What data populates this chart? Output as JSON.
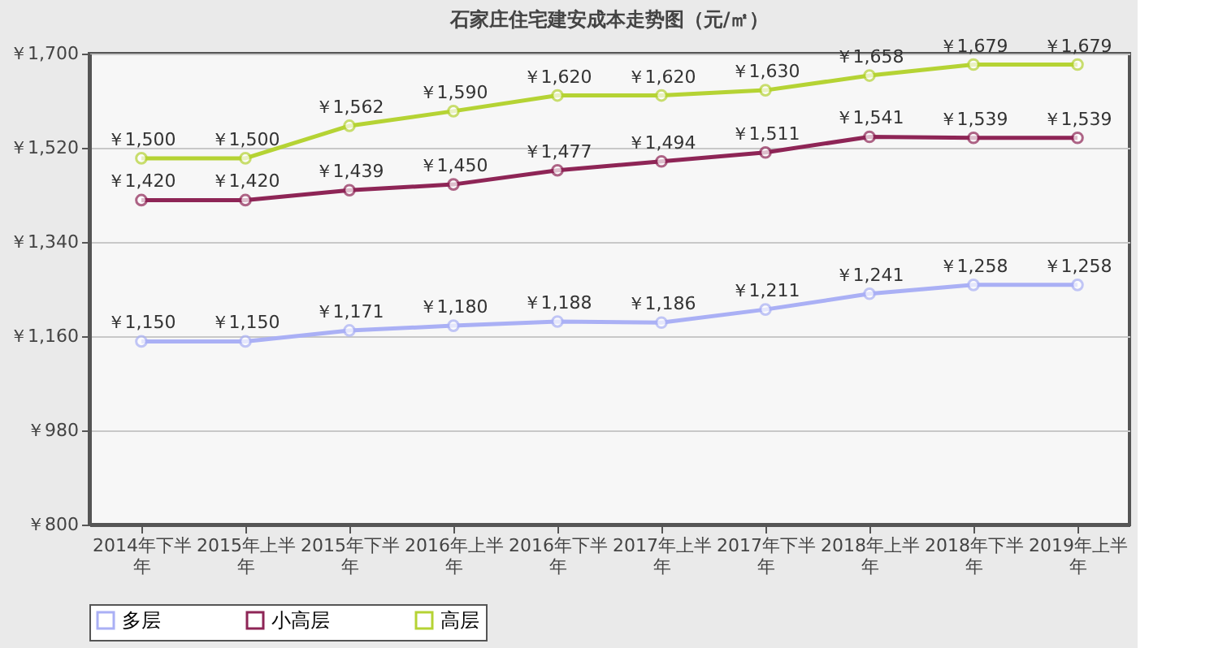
{
  "chart_data": {
    "type": "line",
    "title": "石家庄住宅建安成本走势图（元/㎡）",
    "categories": [
      "2014年下半年",
      "2015年上半年",
      "2015年下半年",
      "2016年上半年",
      "2016年下半年",
      "2017年上半年",
      "2017年下半年",
      "2018年上半年",
      "2018年下半年",
      "2019年上半年"
    ],
    "series": [
      {
        "name": "多层",
        "color": "#aab0f5",
        "values": [
          1150,
          1150,
          1171,
          1180,
          1188,
          1186,
          1211,
          1241,
          1258,
          1258
        ],
        "value_labels": [
          "￥1,150",
          "￥1,150",
          "￥1,171",
          "￥1,180",
          "￥1,188",
          "￥1,186",
          "￥1,211",
          "￥1,241",
          "￥1,258",
          "￥1,258"
        ]
      },
      {
        "name": "小高层",
        "color": "#8e2556",
        "values": [
          1420,
          1420,
          1439,
          1450,
          1477,
          1494,
          1511,
          1541,
          1539,
          1539
        ],
        "value_labels": [
          "￥1,420",
          "￥1,420",
          "￥1,439",
          "￥1,450",
          "￥1,477",
          "￥1,494",
          "￥1,511",
          "￥1,541",
          "￥1,539",
          "￥1,539"
        ]
      },
      {
        "name": "高层",
        "color": "#b5d334",
        "values": [
          1500,
          1500,
          1562,
          1590,
          1620,
          1620,
          1630,
          1658,
          1679,
          1679
        ],
        "value_labels": [
          "￥1,500",
          "￥1,500",
          "￥1,562",
          "￥1,590",
          "￥1,620",
          "￥1,620",
          "￥1,630",
          "￥1,658",
          "￥1,679",
          "￥1,679"
        ]
      }
    ],
    "ylim": [
      800,
      1700
    ],
    "yticks": [
      {
        "value": 800,
        "label": "￥800"
      },
      {
        "value": 980,
        "label": "￥980"
      },
      {
        "value": 1160,
        "label": "￥1,160"
      },
      {
        "value": 1340,
        "label": "￥1,340"
      },
      {
        "value": 1520,
        "label": "￥1,520"
      },
      {
        "value": 1700,
        "label": "￥1,700"
      }
    ],
    "grid": "y",
    "legend": "bottom",
    "marker": "circle",
    "line_style": "solid"
  }
}
